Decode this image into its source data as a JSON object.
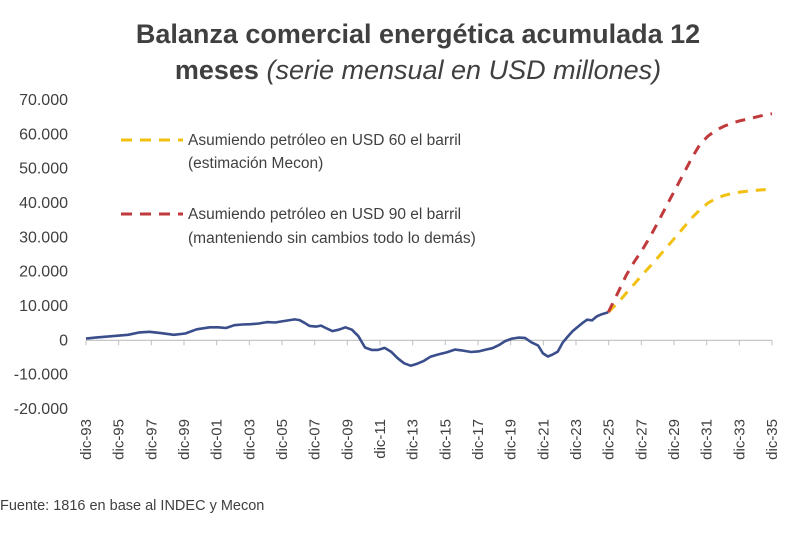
{
  "title": {
    "line1": "Balanza comercial energética acumulada 12",
    "line2_bold": "meses",
    "line2_italic": "(serie mensual en USD millones)"
  },
  "source": "Fuente: 1816 en base al INDEC y Mecon",
  "chart_data": {
    "type": "line",
    "title": "Balanza comercial energética acumulada 12 meses (serie mensual en USD millones)",
    "xlabel": "",
    "ylabel": "",
    "ylim": [
      -20000,
      70000
    ],
    "yticks": [
      70000,
      60000,
      50000,
      40000,
      30000,
      20000,
      10000,
      0,
      -10000,
      -20000
    ],
    "ytick_labels": [
      "70.000",
      "60.000",
      "50.000",
      "40.000",
      "30.000",
      "20.000",
      "10.000",
      "0",
      "-10.000",
      "-20.000"
    ],
    "xlim": [
      1993.92,
      2035.92
    ],
    "xtick_labels": [
      "dic-93",
      "dic-95",
      "dic-97",
      "dic-99",
      "dic-01",
      "dic-03",
      "dic-05",
      "dic-07",
      "dic-09",
      "dic-11",
      "dic-13",
      "dic-15",
      "dic-17",
      "dic-19",
      "dic-21",
      "dic-23",
      "dic-25",
      "dic-27",
      "dic-29",
      "dic-31",
      "dic-33",
      "dic-35"
    ],
    "grid": false,
    "legend": "top-left",
    "series": [
      {
        "name": "",
        "color": "#3b4e8c",
        "style": "solid",
        "x": [
          1993.92,
          1994.5,
          1995.5,
          1996.5,
          1997.2,
          1997.8,
          1998.5,
          1999.3,
          2000.0,
          2000.7,
          2001.5,
          2002.0,
          2002.5,
          2003.0,
          2003.5,
          2004.0,
          2004.5,
          2005.0,
          2005.5,
          2006.0,
          2006.7,
          2007.0,
          2007.3,
          2007.6,
          2008.0,
          2008.3,
          2008.6,
          2009.0,
          2009.4,
          2009.8,
          2010.2,
          2010.6,
          2011.0,
          2011.4,
          2011.8,
          2012.2,
          2012.6,
          2013.0,
          2013.4,
          2013.8,
          2014.2,
          2014.6,
          2015.0,
          2015.5,
          2016.0,
          2016.5,
          2017.0,
          2017.5,
          2018.0,
          2018.4,
          2018.8,
          2019.2,
          2019.6,
          2020.0,
          2020.4,
          2020.8,
          2021.2,
          2021.6,
          2021.9,
          2022.2,
          2022.5,
          2022.8,
          2023.1,
          2023.4,
          2023.7,
          2024.0,
          2024.3,
          2024.6,
          2024.9,
          2025.2,
          2025.5,
          2025.9
        ],
        "y": [
          500,
          800,
          1200,
          1600,
          2300,
          2500,
          2100,
          1600,
          2000,
          3200,
          3800,
          3800,
          3600,
          4400,
          4600,
          4700,
          4900,
          5300,
          5200,
          5600,
          6100,
          5900,
          5100,
          4200,
          4000,
          4300,
          3600,
          2700,
          3100,
          3800,
          3100,
          1200,
          -2100,
          -2800,
          -2800,
          -2200,
          -3300,
          -5200,
          -6700,
          -7400,
          -6800,
          -6000,
          -4800,
          -4100,
          -3500,
          -2700,
          -3000,
          -3400,
          -3200,
          -2700,
          -2300,
          -1400,
          -200,
          500,
          800,
          700,
          -600,
          -1500,
          -3800,
          -4700,
          -4100,
          -3300,
          -700,
          1000,
          2600,
          3800,
          5000,
          6000,
          5800,
          7000,
          7600,
          8200
        ]
      },
      {
        "name": "Asumiendo petróleo en USD 60 el barril (estimación Mecon)",
        "color": "#f2c010",
        "style": "dashed",
        "x": [
          2025.9,
          2026.5,
          2027.0,
          2027.5,
          2028.0,
          2028.5,
          2029.0,
          2029.5,
          2030.0,
          2030.5,
          2031.0,
          2031.5,
          2032.0,
          2032.5,
          2033.0,
          2033.5,
          2034.0,
          2034.5,
          2035.0,
          2035.5,
          2035.92
        ],
        "y": [
          8200,
          11000,
          13800,
          16500,
          19200,
          21800,
          24500,
          27200,
          30000,
          32800,
          35600,
          38000,
          40000,
          41300,
          42200,
          42800,
          43200,
          43500,
          43700,
          43900,
          44000
        ]
      },
      {
        "name": "Asumiendo petróleo en USD 90 el barril (manteniendo sin cambios todo lo demás)",
        "color": "#c0393b",
        "style": "dashed",
        "x": [
          2025.9,
          2026.5,
          2027.0,
          2027.5,
          2028.0,
          2028.5,
          2029.0,
          2029.5,
          2030.0,
          2030.5,
          2031.0,
          2031.5,
          2032.0,
          2032.5,
          2033.0,
          2033.5,
          2034.0,
          2034.5,
          2035.0,
          2035.5,
          2035.92
        ],
        "y": [
          8200,
          14000,
          19000,
          23000,
          26500,
          30500,
          35000,
          39500,
          44000,
          48500,
          53000,
          57000,
          59500,
          61200,
          62400,
          63300,
          64000,
          64500,
          65100,
          65700,
          66000
        ]
      }
    ]
  }
}
